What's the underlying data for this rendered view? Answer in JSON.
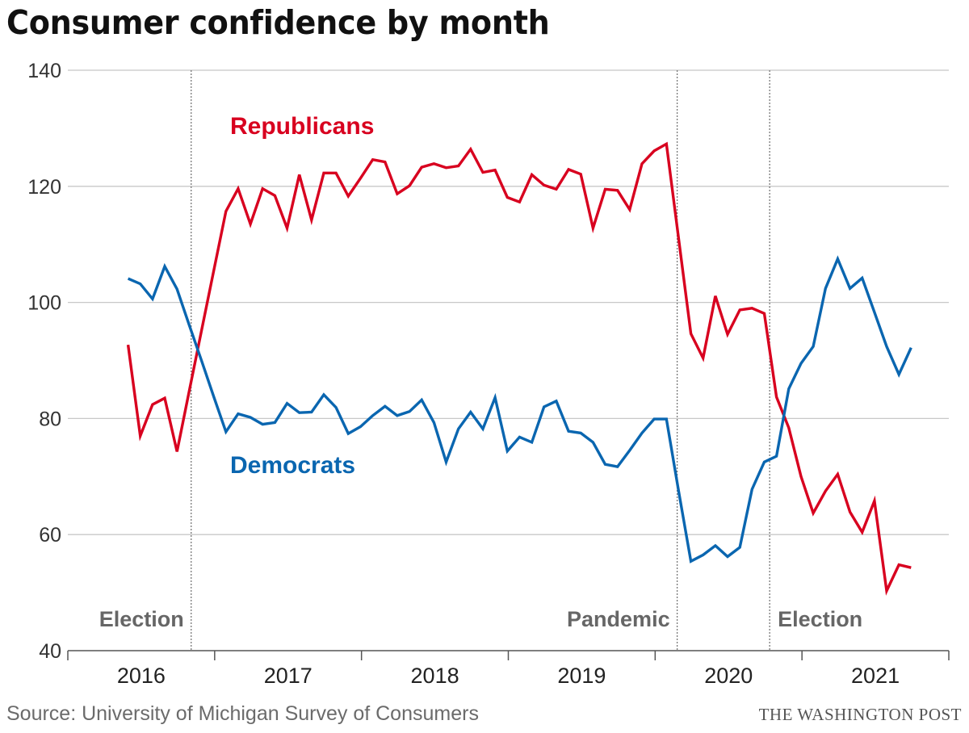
{
  "title": "Consumer confidence by month",
  "source": "Source: University of Michigan Survey of Consumers",
  "credit": "THE WASHINGTON POST",
  "colors": {
    "republicans": "#d8001f",
    "democrats": "#0a66b0",
    "grid": "#c8c8c8",
    "annotation": "#666666"
  },
  "chart_data": {
    "type": "line",
    "title": "Consumer confidence by month",
    "xlabel": "",
    "ylabel": "",
    "ylim": [
      40,
      140
    ],
    "yticks": [
      40,
      60,
      80,
      100,
      120,
      140
    ],
    "xlim": [
      2016,
      2022
    ],
    "xtick_labels": [
      "2016",
      "2017",
      "2018",
      "2019",
      "2020",
      "2021"
    ],
    "grid": true,
    "x_start_year": 2016.41,
    "x_step": "1 month",
    "series": [
      {
        "name": "Republicans",
        "label": "Republicans",
        "color": "#d8001f",
        "values": [
          92.7,
          77.0,
          82.4,
          83.5,
          74.3,
          84.7,
          95.1,
          105.4,
          115.7,
          119.6,
          113.5,
          119.6,
          118.4,
          112.8,
          122.0,
          114.2,
          122.3,
          122.3,
          118.3,
          121.4,
          124.6,
          124.2,
          118.7,
          120.1,
          123.3,
          123.9,
          123.2,
          123.5,
          126.4,
          122.4,
          122.8,
          118.1,
          117.3,
          122.0,
          120.2,
          119.5,
          122.9,
          122.1,
          112.8,
          119.5,
          119.3,
          116.0,
          123.9,
          126.1,
          127.3,
          111.0,
          94.6,
          90.4,
          101.1,
          94.5,
          98.7,
          99.0,
          98.1,
          83.7,
          78.4,
          70.0,
          63.7,
          67.5,
          70.4,
          63.9,
          60.4,
          65.8,
          50.3,
          54.8,
          54.3
        ]
      },
      {
        "name": "Democrats",
        "label": "Democrats",
        "color": "#0a66b0",
        "values": [
          104.1,
          103.2,
          100.6,
          106.2,
          102.3,
          96.1,
          90.0,
          83.8,
          77.7,
          80.8,
          80.2,
          79.0,
          79.3,
          82.6,
          81.0,
          81.1,
          84.1,
          81.9,
          77.4,
          78.6,
          80.5,
          82.1,
          80.5,
          81.2,
          83.2,
          79.3,
          72.5,
          78.2,
          81.1,
          78.2,
          83.6,
          74.4,
          76.8,
          75.9,
          82.0,
          83.0,
          77.8,
          77.5,
          75.9,
          72.1,
          71.7,
          74.5,
          77.5,
          79.9,
          79.9,
          67.5,
          55.4,
          56.5,
          58.1,
          56.2,
          57.8,
          67.8,
          72.5,
          73.5,
          85.1,
          89.5,
          92.4,
          102.4,
          107.5,
          102.4,
          104.2,
          98.3,
          92.4,
          87.6,
          92.2
        ]
      }
    ],
    "annotations": [
      {
        "text": "Election",
        "x": 2016.84,
        "side": "left"
      },
      {
        "text": "Pandemic",
        "x": 2020.15,
        "side": "left"
      },
      {
        "text": "Election",
        "x": 2020.78,
        "side": "right"
      }
    ]
  }
}
